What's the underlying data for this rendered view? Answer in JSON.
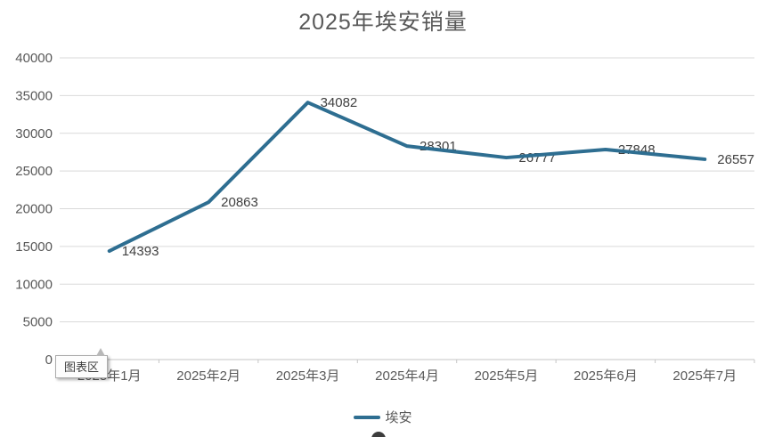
{
  "chart_data": {
    "type": "line",
    "title": "2025年埃安销量",
    "categories": [
      "2025年1月",
      "2025年2月",
      "2025年3月",
      "2025年4月",
      "2025年5月",
      "2025年6月",
      "2025年7月"
    ],
    "series": [
      {
        "name": "埃安",
        "color": "#2e6e91",
        "values": [
          14393,
          20863,
          34082,
          28301,
          26777,
          27848,
          26557
        ]
      }
    ],
    "ylim": [
      0,
      40000
    ],
    "ytick_step": 5000,
    "grid": true,
    "legend_position": "bottom",
    "data_labels": true
  },
  "tooltip": {
    "label": "图表区"
  },
  "colors": {
    "line": "#2e6e91",
    "gridline": "#d9d9d9",
    "axis_line": "#c6c6c6",
    "axis_text": "#595959",
    "title_text": "#595959",
    "data_label_text": "#404040"
  }
}
